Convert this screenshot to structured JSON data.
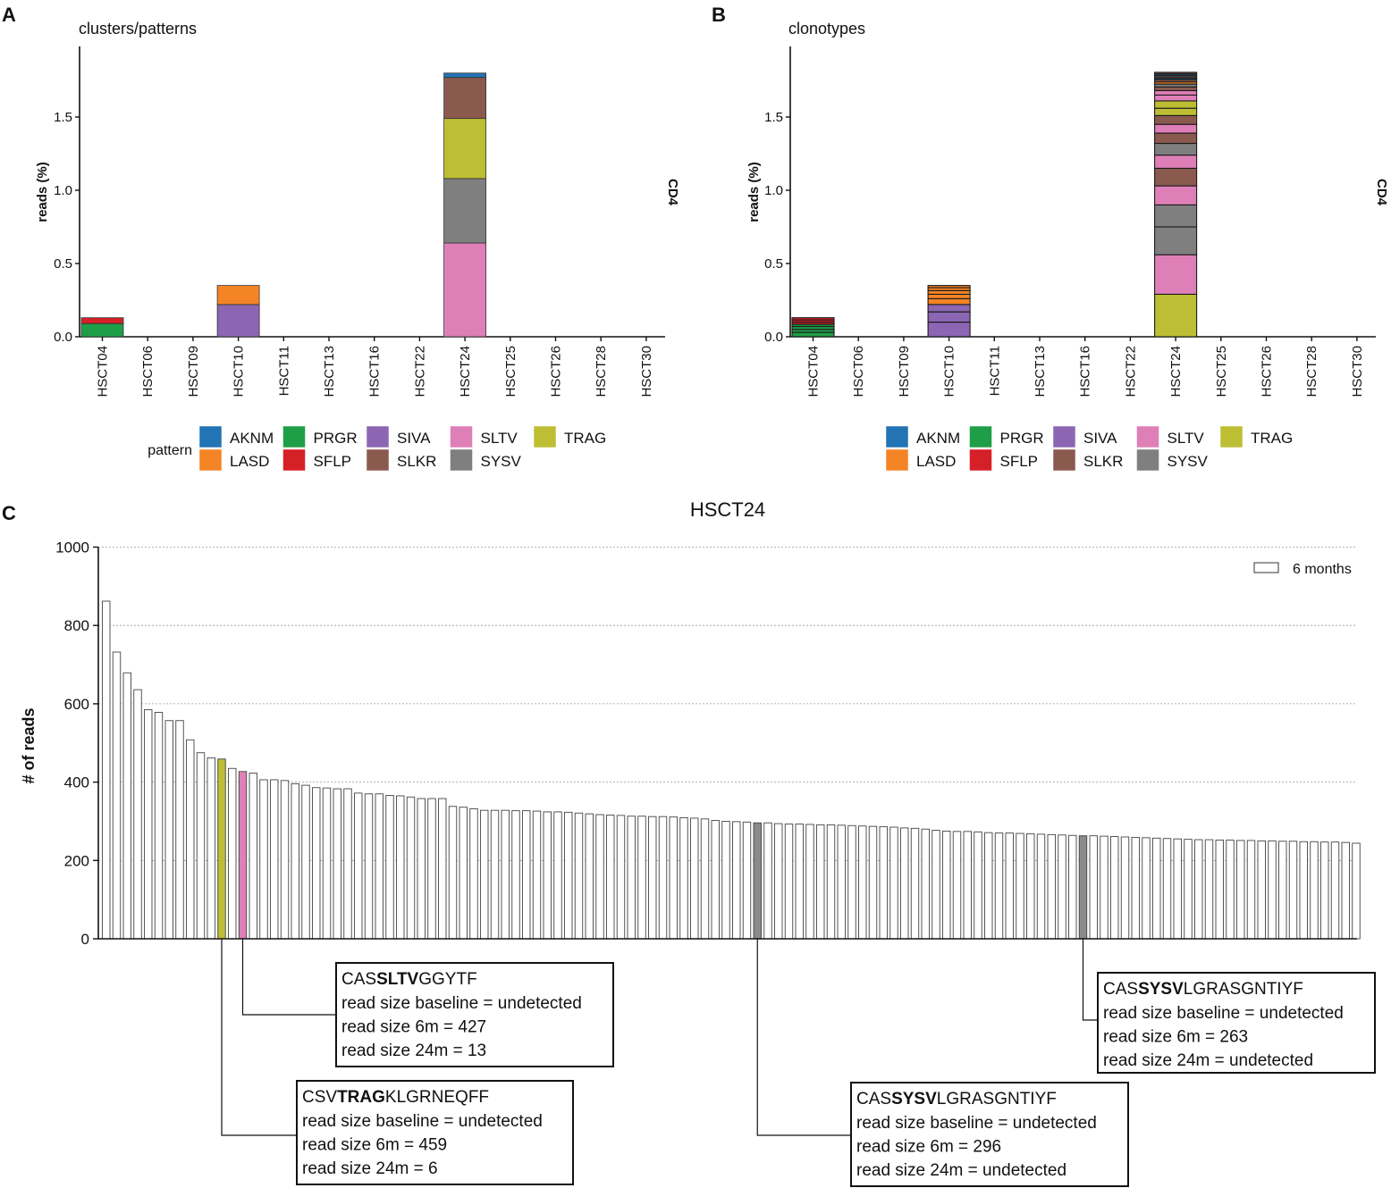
{
  "panels": {
    "A": {
      "letter": "A",
      "title": "clusters/patterns",
      "ylabel": "reads (%)",
      "side_label": "CD4",
      "legend_title": "pattern"
    },
    "B": {
      "letter": "B",
      "title": "clonotypes",
      "ylabel": "reads (%)",
      "side_label": "CD4",
      "legend_title": ""
    },
    "C": {
      "letter": "C",
      "title": "HSCT24",
      "ylabel": "# of reads",
      "legend_label": "6 months"
    }
  },
  "colors": {
    "AKNM": "#2274b5",
    "LASD": "#f58426",
    "PRGR": "#1f9e48",
    "SFLP": "#d62028",
    "SIVA": "#8c66b3",
    "SLKR": "#8b5a4f",
    "SLTV": "#df7fb8",
    "SYSV": "#7f7f7f",
    "TRAG": "#bdbe34",
    "clonotype_stroke": "#1a1a1a",
    "bar_default": "#ffffff",
    "sysv_highlight": "#8a8a8a"
  },
  "chart_data": [
    {
      "id": "A",
      "type": "bar",
      "stacked": true,
      "title": "clusters/patterns",
      "xlabel": "",
      "ylabel": "reads (%)",
      "ylim": [
        0,
        2.0
      ],
      "yticks": [
        "0.0",
        "0.5",
        "1.0",
        "1.5"
      ],
      "categories": [
        "HSCT04",
        "HSCT06",
        "HSCT09",
        "HSCT10",
        "HSCT11",
        "HSCT13",
        "HSCT16",
        "HSCT22",
        "HSCT24",
        "HSCT25",
        "HSCT26",
        "HSCT28",
        "HSCT30"
      ],
      "series": [
        {
          "name": "PRGR",
          "values": [
            0.09,
            0,
            0,
            0,
            0,
            0,
            0,
            0,
            0,
            0,
            0,
            0,
            0
          ]
        },
        {
          "name": "SFLP",
          "values": [
            0.04,
            0,
            0,
            0,
            0,
            0,
            0,
            0,
            0,
            0,
            0,
            0,
            0
          ]
        },
        {
          "name": "SIVA",
          "values": [
            0,
            0,
            0,
            0.22,
            0,
            0,
            0,
            0,
            0,
            0,
            0,
            0,
            0
          ]
        },
        {
          "name": "LASD",
          "values": [
            0,
            0,
            0,
            0.13,
            0,
            0,
            0,
            0,
            0,
            0,
            0,
            0,
            0
          ]
        },
        {
          "name": "SLTV",
          "values": [
            0,
            0,
            0,
            0,
            0,
            0,
            0,
            0,
            0.64,
            0,
            0,
            0,
            0
          ]
        },
        {
          "name": "SYSV",
          "values": [
            0,
            0,
            0,
            0,
            0,
            0,
            0,
            0,
            0.44,
            0,
            0,
            0,
            0
          ]
        },
        {
          "name": "TRAG",
          "values": [
            0,
            0,
            0,
            0,
            0,
            0,
            0,
            0,
            0.41,
            0,
            0,
            0,
            0
          ]
        },
        {
          "name": "SLKR",
          "values": [
            0,
            0,
            0,
            0,
            0,
            0,
            0,
            0,
            0.28,
            0,
            0,
            0,
            0
          ]
        },
        {
          "name": "AKNM",
          "values": [
            0,
            0,
            0,
            0,
            0,
            0,
            0,
            0,
            0.03,
            0,
            0,
            0,
            0
          ]
        }
      ],
      "legend": {
        "title": "pattern",
        "items": [
          "AKNM",
          "LASD",
          "PRGR",
          "SFLP",
          "SIVA",
          "SLKR",
          "SLTV",
          "SYSV",
          "TRAG"
        ]
      }
    },
    {
      "id": "B",
      "type": "bar",
      "stacked": true,
      "title": "clonotypes",
      "xlabel": "",
      "ylabel": "reads (%)",
      "ylim": [
        0,
        2.0
      ],
      "yticks": [
        "0.0",
        "0.5",
        "1.0",
        "1.5"
      ],
      "categories": [
        "HSCT04",
        "HSCT06",
        "HSCT09",
        "HSCT10",
        "HSCT11",
        "HSCT13",
        "HSCT16",
        "HSCT22",
        "HSCT24",
        "HSCT25",
        "HSCT26",
        "HSCT28",
        "HSCT30"
      ],
      "stacks": {
        "HSCT04": [
          {
            "pattern": "PRGR",
            "value": 0.03
          },
          {
            "pattern": "PRGR",
            "value": 0.02
          },
          {
            "pattern": "PRGR",
            "value": 0.02
          },
          {
            "pattern": "PRGR",
            "value": 0.015
          },
          {
            "pattern": "SFLP",
            "value": 0.015
          },
          {
            "pattern": "SFLP",
            "value": 0.015
          },
          {
            "pattern": "SFLP",
            "value": 0.015
          }
        ],
        "HSCT10": [
          {
            "pattern": "SIVA",
            "value": 0.1
          },
          {
            "pattern": "SIVA",
            "value": 0.07
          },
          {
            "pattern": "SIVA",
            "value": 0.05
          },
          {
            "pattern": "LASD",
            "value": 0.04
          },
          {
            "pattern": "LASD",
            "value": 0.03
          },
          {
            "pattern": "LASD",
            "value": 0.025
          },
          {
            "pattern": "LASD",
            "value": 0.02
          },
          {
            "pattern": "LASD",
            "value": 0.015
          }
        ],
        "HSCT24": [
          {
            "pattern": "TRAG",
            "value": 0.29
          },
          {
            "pattern": "SLTV",
            "value": 0.27
          },
          {
            "pattern": "SYSV",
            "value": 0.19
          },
          {
            "pattern": "SYSV",
            "value": 0.15
          },
          {
            "pattern": "SLTV",
            "value": 0.13
          },
          {
            "pattern": "SLKR",
            "value": 0.12
          },
          {
            "pattern": "SLTV",
            "value": 0.09
          },
          {
            "pattern": "SYSV",
            "value": 0.08
          },
          {
            "pattern": "SLKR",
            "value": 0.07
          },
          {
            "pattern": "SLTV",
            "value": 0.06
          },
          {
            "pattern": "SLKR",
            "value": 0.06
          },
          {
            "pattern": "TRAG",
            "value": 0.05
          },
          {
            "pattern": "TRAG",
            "value": 0.05
          },
          {
            "pattern": "SLTV",
            "value": 0.04
          },
          {
            "pattern": "SLTV",
            "value": 0.03
          },
          {
            "pattern": "SLKR",
            "value": 0.025
          },
          {
            "pattern": "SYSV",
            "value": 0.02
          },
          {
            "pattern": "LASD",
            "value": 0.015
          },
          {
            "pattern": "SLKR",
            "value": 0.015
          },
          {
            "pattern": "AKNM",
            "value": 0.01
          },
          {
            "pattern": "SLKR",
            "value": 0.01
          },
          {
            "pattern": "SYSV",
            "value": 0.01
          },
          {
            "pattern": "AKNM",
            "value": 0.01
          },
          {
            "pattern": "SLKR",
            "value": 0.01
          }
        ]
      },
      "legend": {
        "title": "",
        "items": [
          "AKNM",
          "LASD",
          "PRGR",
          "SFLP",
          "SIVA",
          "SLKR",
          "SLTV",
          "SYSV",
          "TRAG"
        ]
      }
    },
    {
      "id": "C",
      "type": "bar",
      "title": "HSCT24",
      "xlabel": "",
      "ylabel": "# of reads",
      "ylim": [
        0,
        1000
      ],
      "yticks": [
        "0",
        "200",
        "400",
        "600",
        "800",
        "1000"
      ],
      "grid": true,
      "legend": {
        "position": "top-right",
        "items": [
          "6 months"
        ]
      },
      "series": [
        {
          "name": "6 months",
          "values": [
            862,
            732,
            679,
            636,
            585,
            578,
            557,
            557,
            508,
            475,
            462,
            459,
            435,
            427,
            423,
            406,
            406,
            404,
            396,
            392,
            386,
            385,
            383,
            383,
            372,
            370,
            370,
            366,
            365,
            362,
            358,
            358,
            358,
            338,
            336,
            332,
            328,
            328,
            328,
            327,
            327,
            326,
            324,
            324,
            323,
            321,
            319,
            317,
            316,
            315,
            313,
            313,
            312,
            312,
            311,
            309,
            308,
            306,
            302,
            300,
            299,
            298,
            296,
            296,
            294,
            293,
            293,
            292,
            291,
            291,
            290,
            289,
            288,
            287,
            286,
            285,
            283,
            282,
            280,
            277,
            275,
            274,
            274,
            273,
            271,
            270,
            270,
            269,
            268,
            267,
            266,
            265,
            264,
            263,
            263,
            262,
            261,
            260,
            259,
            258,
            257,
            256,
            255,
            254,
            253,
            253,
            252,
            252,
            251,
            251,
            250,
            250,
            249,
            249,
            248,
            248,
            247,
            247,
            246,
            244
          ]
        }
      ],
      "highlights": [
        {
          "index": 11,
          "pattern": "TRAG"
        },
        {
          "index": 13,
          "pattern": "SLTV"
        },
        {
          "index": 62,
          "pattern": "SYSV"
        },
        {
          "index": 93,
          "pattern": "SYSV"
        }
      ],
      "annotations": [
        {
          "target": 13,
          "prefix": "CAS",
          "motif": "SLTV",
          "suffix": "GGYTF",
          "lines": [
            "read size baseline = undetected",
            "read size 6m = 427",
            "read size 24m = 13"
          ]
        },
        {
          "target": 11,
          "prefix": "CSV",
          "motif": "TRAG",
          "suffix": "KLGRNEQFF",
          "lines": [
            "read size baseline = undetected",
            "read size 6m = 459",
            "read size 24m = 6"
          ]
        },
        {
          "target": 62,
          "prefix": "CAS",
          "motif": "SYSV",
          "suffix": "LGRASGNTIYF",
          "lines": [
            "read size baseline = undetected",
            "read size 6m = 296",
            "read size 24m = undetected"
          ]
        },
        {
          "target": 93,
          "prefix": "CAS",
          "motif": "SYSV",
          "suffix": "LGRASGNTIYF",
          "lines": [
            "read size baseline = undetected",
            "read size 6m = 263",
            "read size 24m = undetected"
          ]
        }
      ]
    }
  ]
}
